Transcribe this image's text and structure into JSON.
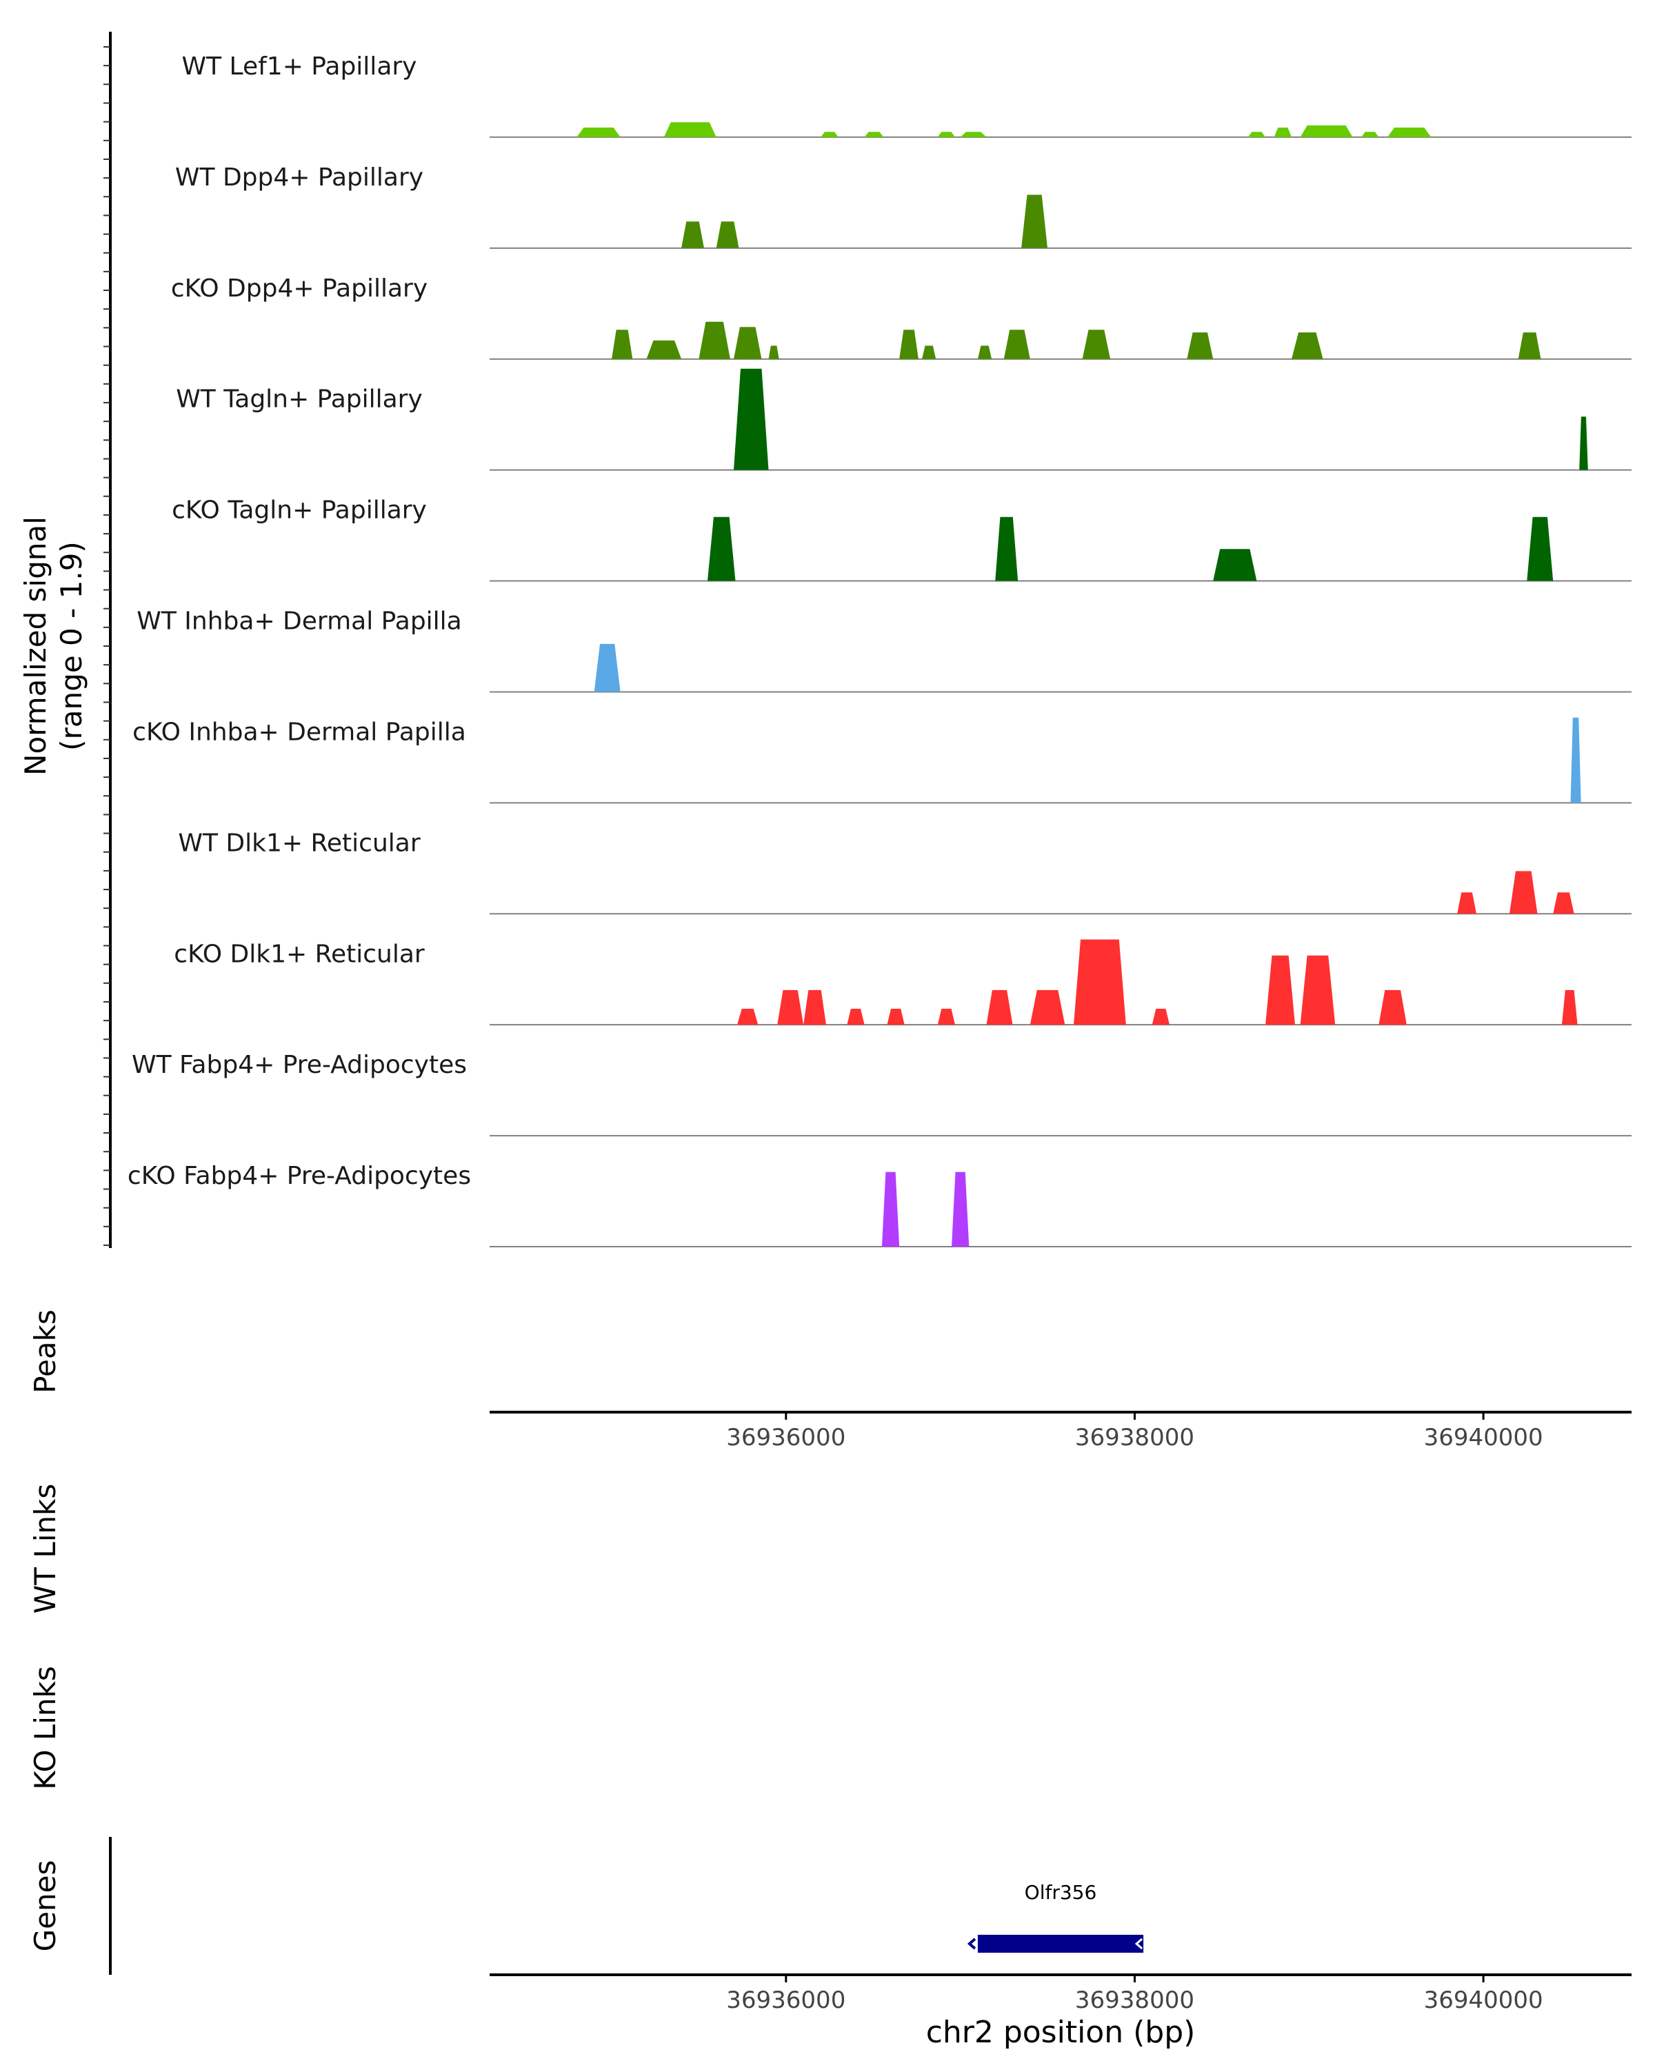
{
  "chart_data": {
    "type": "area",
    "figure": "Genome coverage track plot",
    "coverage": {
      "ylabel_line1": "Normalized signal",
      "ylabel_line2": "(range 0 - 1.9)",
      "range": [
        0,
        1.9
      ],
      "tracks": [
        {
          "label": "WT Lef1+ Papillary",
          "color": "#66cc00",
          "regions": [
            [
              36934800,
              36935050,
              0.18
            ],
            [
              36935300,
              36935600,
              0.28
            ],
            [
              36936200,
              36936300,
              0.1
            ],
            [
              36936450,
              36936560,
              0.1
            ],
            [
              36936870,
              36936970,
              0.1
            ],
            [
              36937000,
              36937150,
              0.1
            ],
            [
              36938650,
              36938750,
              0.1
            ],
            [
              36938800,
              36938900,
              0.18
            ],
            [
              36938950,
              36939250,
              0.22
            ],
            [
              36939300,
              36939400,
              0.1
            ],
            [
              36939450,
              36939700,
              0.18
            ]
          ]
        },
        {
          "label": "WT Dpp4+ Papillary",
          "color": "#4a8a00",
          "regions": [
            [
              36935400,
              36935530,
              0.5
            ],
            [
              36935600,
              36935730,
              0.5
            ],
            [
              36937350,
              36937500,
              1.0
            ]
          ]
        },
        {
          "label": "cKO Dpp4+ Papillary",
          "color": "#4a8a00",
          "regions": [
            [
              36935000,
              36935120,
              0.55
            ],
            [
              36935200,
              36935400,
              0.35
            ],
            [
              36935500,
              36935680,
              0.7
            ],
            [
              36935700,
              36935860,
              0.6
            ],
            [
              36935900,
              36935960,
              0.25
            ],
            [
              36936650,
              36936760,
              0.55
            ],
            [
              36936780,
              36936860,
              0.25
            ],
            [
              36937100,
              36937180,
              0.25
            ],
            [
              36937250,
              36937400,
              0.55
            ],
            [
              36937700,
              36937860,
              0.55
            ],
            [
              36938300,
              36938450,
              0.5
            ],
            [
              36938900,
              36939080,
              0.5
            ],
            [
              36940200,
              36940330,
              0.5
            ]
          ]
        },
        {
          "label": "WT Tagln+ Papillary",
          "color": "#006400",
          "regions": [
            [
              36935700,
              36935900,
              1.9
            ],
            [
              36940550,
              36940600,
              1.0
            ]
          ]
        },
        {
          "label": "cKO Tagln+ Papillary",
          "color": "#006400",
          "regions": [
            [
              36935550,
              36935710,
              1.2
            ],
            [
              36937200,
              36937330,
              1.2
            ],
            [
              36938450,
              36938700,
              0.6
            ],
            [
              36940250,
              36940400,
              1.2
            ]
          ]
        },
        {
          "label": "WT Inhba+ Dermal Papilla",
          "color": "#5aa8e6",
          "regions": [
            [
              36934900,
              36935050,
              0.9
            ]
          ]
        },
        {
          "label": "cKO Inhba+ Dermal Papilla",
          "color": "#5aa8e6",
          "regions": [
            [
              36940500,
              36940560,
              1.6
            ]
          ]
        },
        {
          "label": "WT Dlk1+ Reticular",
          "color": "#ff3030",
          "regions": [
            [
              36939850,
              36939960,
              0.4
            ],
            [
              36940150,
              36940310,
              0.8
            ],
            [
              36940400,
              36940520,
              0.4
            ]
          ]
        },
        {
          "label": "cKO Dlk1+ Reticular",
          "color": "#ff3030",
          "regions": [
            [
              36935720,
              36935840,
              0.3
            ],
            [
              36935950,
              36936100,
              0.65
            ],
            [
              36936100,
              36936230,
              0.65
            ],
            [
              36936350,
              36936450,
              0.3
            ],
            [
              36936580,
              36936680,
              0.3
            ],
            [
              36936870,
              36936970,
              0.3
            ],
            [
              36937150,
              36937300,
              0.65
            ],
            [
              36937400,
              36937600,
              0.65
            ],
            [
              36937650,
              36937950,
              1.6
            ],
            [
              36938100,
              36938200,
              0.3
            ],
            [
              36938750,
              36938920,
              1.3
            ],
            [
              36938950,
              36939150,
              1.3
            ],
            [
              36939400,
              36939560,
              0.65
            ],
            [
              36940450,
              36940540,
              0.65
            ]
          ]
        },
        {
          "label": "WT Fabp4+ Pre-Adipocytes",
          "color": "#9b30ff",
          "regions": []
        },
        {
          "label": "cKO Fabp4+ Pre-Adipocytes",
          "color": "#b23cff",
          "regions": [
            [
              36936550,
              36936650,
              1.4
            ],
            [
              36936950,
              36937050,
              1.4
            ]
          ]
        }
      ]
    },
    "peaks": {
      "ylabel": "Peaks",
      "peaks": []
    },
    "links": [
      {
        "ylabel": "WT Links",
        "links": []
      },
      {
        "ylabel": "KO Links",
        "links": []
      }
    ],
    "genes": {
      "ylabel": "Genes",
      "items": [
        {
          "name": "Olfr356",
          "start": 36937100,
          "end": 36938050,
          "strand": "-",
          "color": "#00008b"
        }
      ]
    },
    "x_axis": {
      "xlabel": "chr2 position (bp)",
      "xlim": [
        36934300,
        36940850
      ],
      "ticks": [
        36936000,
        36938000,
        36940000
      ],
      "tick_labels": [
        "36936000",
        "36938000",
        "36940000"
      ]
    }
  }
}
